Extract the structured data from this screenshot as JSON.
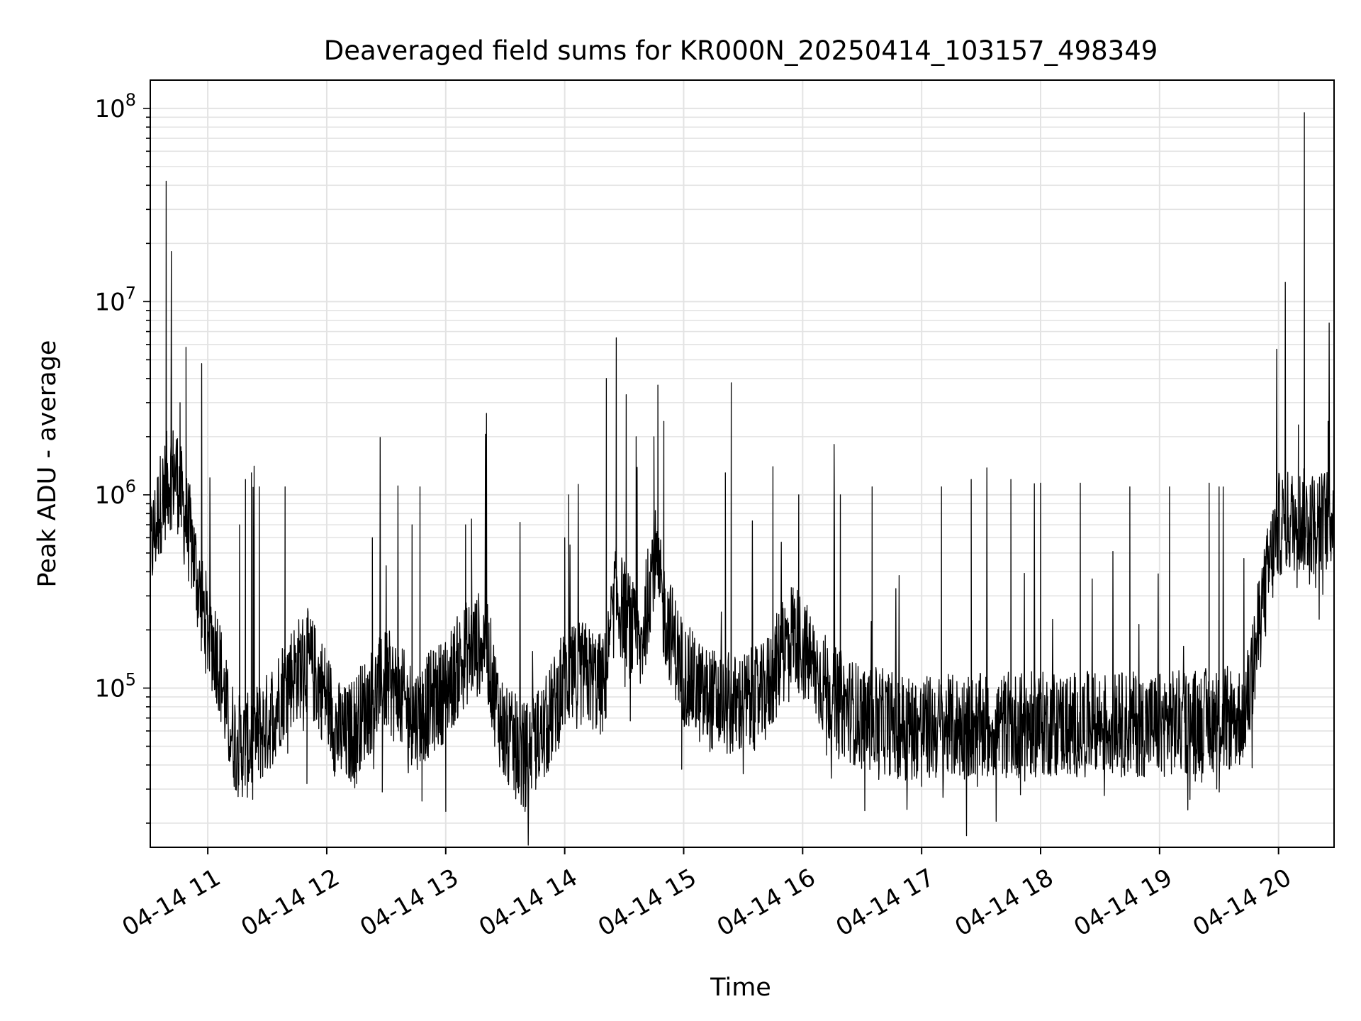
{
  "chart_data": {
    "type": "line",
    "title": "Deaveraged field sums for KR000N_20250414_103157_498349",
    "xlabel": "Time",
    "ylabel": "Peak ADU - average",
    "yscale": "log",
    "ylim": [
      15000,
      140000000
    ],
    "xlim": [
      "2025-04-14 10:31",
      "2025-04-14 20:28"
    ],
    "grid": true,
    "line_color": "#000000",
    "x_ticks": [
      {
        "t": "2025-04-14 11:00",
        "label": "04-14 11"
      },
      {
        "t": "2025-04-14 12:00",
        "label": "04-14 12"
      },
      {
        "t": "2025-04-14 13:00",
        "label": "04-14 13"
      },
      {
        "t": "2025-04-14 14:00",
        "label": "04-14 14"
      },
      {
        "t": "2025-04-14 15:00",
        "label": "04-14 15"
      },
      {
        "t": "2025-04-14 16:00",
        "label": "04-14 16"
      },
      {
        "t": "2025-04-14 17:00",
        "label": "04-14 17"
      },
      {
        "t": "2025-04-14 18:00",
        "label": "04-14 18"
      },
      {
        "t": "2025-04-14 19:00",
        "label": "04-14 19"
      },
      {
        "t": "2025-04-14 20:00",
        "label": "04-14 20"
      }
    ],
    "y_ticks": [
      {
        "value": 100000,
        "base": "10",
        "exp": "5"
      },
      {
        "value": 1000000,
        "base": "10",
        "exp": "6"
      },
      {
        "value": 10000000,
        "base": "10",
        "exp": "7"
      },
      {
        "value": 100000000,
        "base": "10",
        "exp": "8"
      }
    ],
    "series": [
      {
        "baseline": [
          [
            "2025-04-14 10:31",
            500000
          ],
          [
            "2025-04-14 10:36",
            900000
          ],
          [
            "2025-04-14 10:40",
            1200000
          ],
          [
            "2025-04-14 10:44",
            1300000
          ],
          [
            "2025-04-14 10:48",
            800000
          ],
          [
            "2025-04-14 10:52",
            550000
          ],
          [
            "2025-04-14 10:56",
            300000
          ],
          [
            "2025-04-14 11:00",
            200000
          ],
          [
            "2025-04-14 11:05",
            150000
          ],
          [
            "2025-04-14 11:10",
            70000
          ],
          [
            "2025-04-14 11:15",
            50000
          ],
          [
            "2025-04-14 11:20",
            50000
          ],
          [
            "2025-04-14 11:30",
            65000
          ],
          [
            "2025-04-14 11:40",
            110000
          ],
          [
            "2025-04-14 11:50",
            140000
          ],
          [
            "2025-04-14 12:00",
            90000
          ],
          [
            "2025-04-14 12:05",
            60000
          ],
          [
            "2025-04-14 12:10",
            55000
          ],
          [
            "2025-04-14 12:20",
            80000
          ],
          [
            "2025-04-14 12:30",
            110000
          ],
          [
            "2025-04-14 12:45",
            70000
          ],
          [
            "2025-04-14 13:00",
            100000
          ],
          [
            "2025-04-14 13:10",
            150000
          ],
          [
            "2025-04-14 13:20",
            180000
          ],
          [
            "2025-04-14 13:25",
            90000
          ],
          [
            "2025-04-14 13:30",
            55000
          ],
          [
            "2025-04-14 13:40",
            45000
          ],
          [
            "2025-04-14 13:50",
            60000
          ],
          [
            "2025-04-14 14:00",
            110000
          ],
          [
            "2025-04-14 14:10",
            120000
          ],
          [
            "2025-04-14 14:20",
            100000
          ],
          [
            "2025-04-14 14:25",
            300000
          ],
          [
            "2025-04-14 14:30",
            250000
          ],
          [
            "2025-04-14 14:38",
            150000
          ],
          [
            "2025-04-14 14:45",
            500000
          ],
          [
            "2025-04-14 14:50",
            250000
          ],
          [
            "2025-04-14 15:00",
            120000
          ],
          [
            "2025-04-14 15:10",
            90000
          ],
          [
            "2025-04-14 15:25",
            80000
          ],
          [
            "2025-04-14 15:40",
            90000
          ],
          [
            "2025-04-14 15:55",
            200000
          ],
          [
            "2025-04-14 16:05",
            130000
          ],
          [
            "2025-04-14 16:15",
            90000
          ],
          [
            "2025-04-14 16:30",
            70000
          ],
          [
            "2025-04-14 17:00",
            62000
          ],
          [
            "2025-04-14 18:00",
            65000
          ],
          [
            "2025-04-14 19:00",
            65000
          ],
          [
            "2025-04-14 19:40",
            70000
          ],
          [
            "2025-04-14 19:45",
            90000
          ],
          [
            "2025-04-14 19:50",
            200000
          ],
          [
            "2025-04-14 19:55",
            400000
          ],
          [
            "2025-04-14 20:00",
            700000
          ],
          [
            "2025-04-14 20:10",
            750000
          ],
          [
            "2025-04-14 20:20",
            700000
          ],
          [
            "2025-04-14 20:28",
            800000
          ]
        ],
        "spikes": [
          [
            "2025-04-14 10:39",
            42000000
          ],
          [
            "2025-04-14 10:49",
            5800000
          ],
          [
            "2025-04-14 10:46",
            3000000
          ],
          [
            "2025-04-14 11:16",
            700000
          ],
          [
            "2025-04-14 11:19",
            1200000
          ],
          [
            "2025-04-14 11:22",
            1300000
          ],
          [
            "2025-04-14 11:26",
            1100000
          ],
          [
            "2025-04-14 11:39",
            1100000
          ],
          [
            "2025-04-14 12:23",
            600000
          ],
          [
            "2025-04-14 12:43",
            700000
          ],
          [
            "2025-04-14 12:47",
            1100000
          ],
          [
            "2025-04-14 13:10",
            700000
          ],
          [
            "2025-04-14 13:13",
            750000
          ],
          [
            "2025-04-14 14:00",
            600000
          ],
          [
            "2025-04-14 14:02",
            1000000
          ],
          [
            "2025-04-14 14:21",
            4000000
          ],
          [
            "2025-04-14 14:26",
            6500000
          ],
          [
            "2025-04-14 14:31",
            3300000
          ],
          [
            "2025-04-14 14:36",
            2000000
          ],
          [
            "2025-04-14 14:45",
            2000000
          ],
          [
            "2025-04-14 14:47",
            3700000
          ],
          [
            "2025-04-14 14:50",
            2400000
          ],
          [
            "2025-04-14 15:21",
            1300000
          ],
          [
            "2025-04-14 15:24",
            3800000
          ],
          [
            "2025-04-14 15:45",
            1400000
          ],
          [
            "2025-04-14 15:58",
            1000000
          ],
          [
            "2025-04-14 16:19",
            1000000
          ],
          [
            "2025-04-14 16:35",
            1100000
          ],
          [
            "2025-04-14 17:10",
            1100000
          ],
          [
            "2025-04-14 17:25",
            1200000
          ],
          [
            "2025-04-14 17:45",
            1200000
          ],
          [
            "2025-04-14 18:00",
            1150000
          ],
          [
            "2025-04-14 18:20",
            1150000
          ],
          [
            "2025-04-14 18:45",
            1100000
          ],
          [
            "2025-04-14 19:05",
            1100000
          ],
          [
            "2025-04-14 19:25",
            1150000
          ],
          [
            "2025-04-14 19:30",
            1100000
          ],
          [
            "2025-04-14 20:13",
            95000000
          ],
          [
            "2025-04-14 20:10",
            2300000
          ],
          [
            "2025-04-14 20:25",
            2400000
          ]
        ],
        "dips": [
          [
            "2025-04-14 11:17",
            36000
          ],
          [
            "2025-04-14 11:50",
            32000
          ],
          [
            "2025-04-14 12:15",
            32000
          ],
          [
            "2025-04-14 12:28",
            29000
          ],
          [
            "2025-04-14 12:48",
            26000
          ],
          [
            "2025-04-14 13:00",
            23000
          ],
          [
            "2025-04-14 13:38",
            25000
          ],
          [
            "2025-04-14 13:40",
            23000
          ],
          [
            "2025-04-14 14:59",
            38000
          ],
          [
            "2025-04-14 15:30",
            36000
          ],
          [
            "2025-04-14 16:12",
            45000
          ],
          [
            "2025-04-14 16:48",
            34000
          ],
          [
            "2025-04-14 17:00",
            31000
          ],
          [
            "2025-04-14 17:52",
            33000
          ],
          [
            "2025-04-14 18:15",
            36000
          ],
          [
            "2025-04-14 19:18",
            33000
          ]
        ]
      }
    ]
  }
}
